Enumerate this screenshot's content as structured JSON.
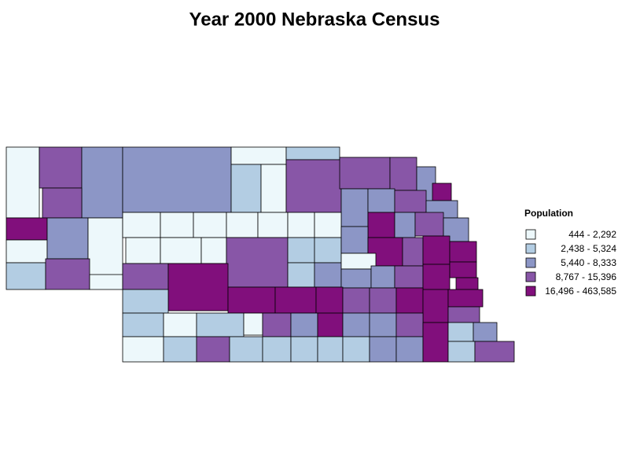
{
  "title": "Year 2000 Nebraska Census",
  "legend": {
    "title": "Population",
    "items": [
      {
        "label": "444 - 2,292",
        "color": "#edf8fb"
      },
      {
        "label": "2,438 - 5,324",
        "color": "#b3cde3"
      },
      {
        "label": "5,440 - 8,333",
        "color": "#8c96c6"
      },
      {
        "label": "8,767 - 15,396",
        "color": "#8856a7"
      },
      {
        "label": "16,496 - 463,585",
        "color": "#810f7c"
      }
    ]
  }
}
